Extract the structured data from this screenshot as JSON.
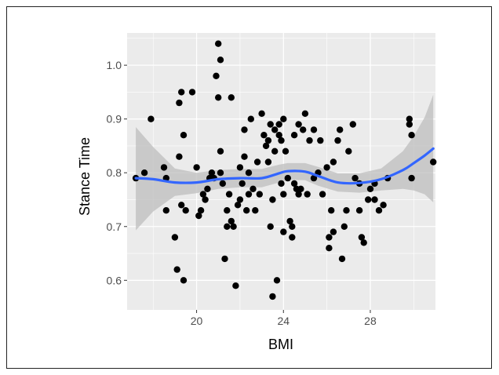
{
  "chart_data": {
    "type": "scatter",
    "xlabel": "BMI",
    "ylabel": "Stance Time",
    "xlim": [
      16.8,
      31.0
    ],
    "ylim": [
      0.545,
      1.06
    ],
    "x_ticks": [
      20,
      24,
      28
    ],
    "x_tick_labels": [
      "20",
      "24",
      "28"
    ],
    "y_ticks": [
      0.6,
      0.7,
      0.8,
      0.9,
      1.0
    ],
    "y_tick_labels": [
      "0.6",
      "0.7",
      "0.8",
      "0.9",
      "1.0"
    ],
    "grid": true,
    "panel_color": "#ebebeb",
    "point_color": "#000000",
    "smooth_color": "#3366ff",
    "band_color": "#bdbdbd",
    "points": [
      [
        17.2,
        0.79
      ],
      [
        17.6,
        0.8
      ],
      [
        17.9,
        0.9
      ],
      [
        18.5,
        0.81
      ],
      [
        18.6,
        0.73
      ],
      [
        18.6,
        0.79
      ],
      [
        19.0,
        0.68
      ],
      [
        19.1,
        0.62
      ],
      [
        19.2,
        0.93
      ],
      [
        19.3,
        0.95
      ],
      [
        19.2,
        0.83
      ],
      [
        19.3,
        0.74
      ],
      [
        19.4,
        0.87
      ],
      [
        19.5,
        0.73
      ],
      [
        19.4,
        0.6
      ],
      [
        19.8,
        0.95
      ],
      [
        20.0,
        0.81
      ],
      [
        20.1,
        0.72
      ],
      [
        20.2,
        0.73
      ],
      [
        20.3,
        0.76
      ],
      [
        20.4,
        0.75
      ],
      [
        20.5,
        0.77
      ],
      [
        20.6,
        0.79
      ],
      [
        20.7,
        0.8
      ],
      [
        20.8,
        0.79
      ],
      [
        20.9,
        0.98
      ],
      [
        21.0,
        1.04
      ],
      [
        21.1,
        1.01
      ],
      [
        21.0,
        0.94
      ],
      [
        21.1,
        0.84
      ],
      [
        21.1,
        0.8
      ],
      [
        21.2,
        0.78
      ],
      [
        21.3,
        0.64
      ],
      [
        21.4,
        0.73
      ],
      [
        21.5,
        0.76
      ],
      [
        21.4,
        0.7
      ],
      [
        21.6,
        0.94
      ],
      [
        21.6,
        0.71
      ],
      [
        21.7,
        0.7
      ],
      [
        21.8,
        0.59
      ],
      [
        21.9,
        0.74
      ],
      [
        22.0,
        0.81
      ],
      [
        22.0,
        0.75
      ],
      [
        22.1,
        0.78
      ],
      [
        22.2,
        0.83
      ],
      [
        22.2,
        0.88
      ],
      [
        22.3,
        0.73
      ],
      [
        22.4,
        0.76
      ],
      [
        22.4,
        0.8
      ],
      [
        22.5,
        0.9
      ],
      [
        22.6,
        0.77
      ],
      [
        22.7,
        0.73
      ],
      [
        22.8,
        0.82
      ],
      [
        22.9,
        0.76
      ],
      [
        23.0,
        0.91
      ],
      [
        23.1,
        0.87
      ],
      [
        23.2,
        0.85
      ],
      [
        23.3,
        0.82
      ],
      [
        23.3,
        0.86
      ],
      [
        23.4,
        0.7
      ],
      [
        23.4,
        0.89
      ],
      [
        23.5,
        0.57
      ],
      [
        23.5,
        0.75
      ],
      [
        23.6,
        0.84
      ],
      [
        23.6,
        0.88
      ],
      [
        23.7,
        0.6
      ],
      [
        23.8,
        0.89
      ],
      [
        23.8,
        0.87
      ],
      [
        23.9,
        0.86
      ],
      [
        23.9,
        0.78
      ],
      [
        24.0,
        0.9
      ],
      [
        24.0,
        0.76
      ],
      [
        24.0,
        0.69
      ],
      [
        24.1,
        0.84
      ],
      [
        24.2,
        0.79
      ],
      [
        24.3,
        0.71
      ],
      [
        24.4,
        0.7
      ],
      [
        24.4,
        0.68
      ],
      [
        24.5,
        0.78
      ],
      [
        24.5,
        0.87
      ],
      [
        24.6,
        0.77
      ],
      [
        24.7,
        0.76
      ],
      [
        24.7,
        0.89
      ],
      [
        24.8,
        0.77
      ],
      [
        24.9,
        0.88
      ],
      [
        25.0,
        0.91
      ],
      [
        25.1,
        0.76
      ],
      [
        25.2,
        0.86
      ],
      [
        25.4,
        0.88
      ],
      [
        25.4,
        0.79
      ],
      [
        25.6,
        0.8
      ],
      [
        25.7,
        0.86
      ],
      [
        25.8,
        0.76
      ],
      [
        26.0,
        0.81
      ],
      [
        26.1,
        0.68
      ],
      [
        26.1,
        0.66
      ],
      [
        26.2,
        0.73
      ],
      [
        26.3,
        0.69
      ],
      [
        26.3,
        0.82
      ],
      [
        26.5,
        0.86
      ],
      [
        26.6,
        0.88
      ],
      [
        26.7,
        0.64
      ],
      [
        26.8,
        0.7
      ],
      [
        26.9,
        0.73
      ],
      [
        27.0,
        0.84
      ],
      [
        27.2,
        0.89
      ],
      [
        27.3,
        0.79
      ],
      [
        27.5,
        0.78
      ],
      [
        27.5,
        0.73
      ],
      [
        27.6,
        0.68
      ],
      [
        27.7,
        0.67
      ],
      [
        27.9,
        0.75
      ],
      [
        28.0,
        0.77
      ],
      [
        28.2,
        0.78
      ],
      [
        28.2,
        0.75
      ],
      [
        28.4,
        0.73
      ],
      [
        28.6,
        0.74
      ],
      [
        28.8,
        0.79
      ],
      [
        29.8,
        0.9
      ],
      [
        29.8,
        0.89
      ],
      [
        29.9,
        0.87
      ],
      [
        29.9,
        0.79
      ],
      [
        30.9,
        0.82
      ]
    ],
    "smooth_x": [
      17.2,
      18.0,
      19.0,
      20.0,
      21.0,
      22.0,
      23.0,
      23.8,
      24.2,
      25.0,
      25.6,
      26.5,
      27.5,
      28.5,
      29.5,
      30.0,
      30.5,
      30.9
    ],
    "smooth_y": [
      0.79,
      0.788,
      0.782,
      0.782,
      0.788,
      0.79,
      0.79,
      0.799,
      0.803,
      0.802,
      0.794,
      0.782,
      0.781,
      0.788,
      0.805,
      0.818,
      0.832,
      0.845
    ],
    "band_lower": [
      0.693,
      0.728,
      0.757,
      0.762,
      0.77,
      0.773,
      0.773,
      0.782,
      0.787,
      0.786,
      0.776,
      0.765,
      0.763,
      0.767,
      0.77,
      0.767,
      0.76,
      0.745
    ],
    "band_upper": [
      0.885,
      0.848,
      0.808,
      0.8,
      0.805,
      0.807,
      0.807,
      0.815,
      0.818,
      0.818,
      0.811,
      0.799,
      0.799,
      0.808,
      0.84,
      0.868,
      0.903,
      0.945
    ]
  }
}
